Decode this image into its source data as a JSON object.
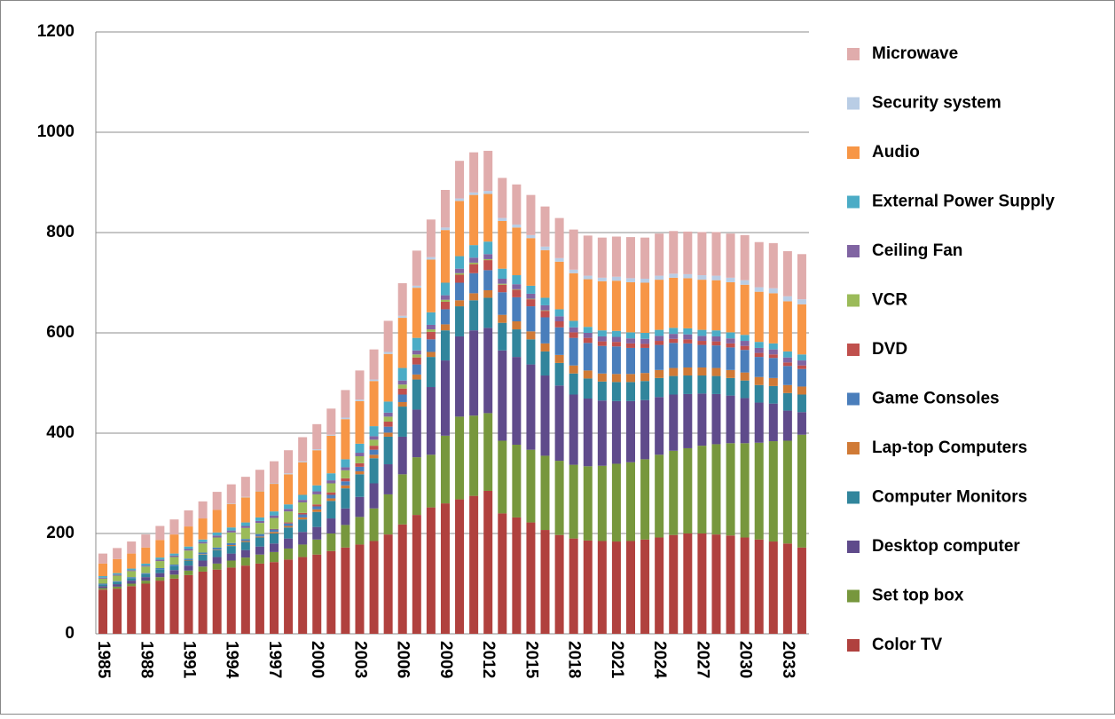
{
  "chart_data": {
    "type": "stacked-bar",
    "categories": [
      "1985",
      null,
      null,
      "1988",
      null,
      null,
      "1991",
      null,
      null,
      "1994",
      null,
      null,
      "1997",
      null,
      null,
      "2000",
      null,
      null,
      "2003",
      null,
      null,
      "2006",
      null,
      null,
      "2009",
      null,
      null,
      "2012",
      null,
      null,
      "2015",
      null,
      null,
      "2018",
      null,
      null,
      "2021",
      null,
      null,
      "2024",
      null,
      null,
      "2027",
      null,
      null,
      "2030",
      null,
      null,
      "2033",
      null
    ],
    "ylim": [
      0,
      1200
    ],
    "yticks": [
      0,
      200,
      400,
      600,
      800,
      1000,
      1200
    ],
    "grid": true,
    "legend": "right",
    "series": [
      {
        "name": "Color TV",
        "color": "#b0413e",
        "values": [
          88,
          90,
          95,
          100,
          106,
          110,
          117,
          124,
          128,
          132,
          136,
          140,
          143,
          148,
          153,
          158,
          165,
          172,
          178,
          185,
          198,
          218,
          237,
          252,
          260,
          268,
          275,
          285,
          240,
          232,
          222,
          207,
          197,
          190,
          186,
          185,
          184,
          185,
          188,
          192,
          197,
          200,
          200,
          198,
          196,
          192,
          188,
          184,
          180,
          172
        ]
      },
      {
        "name": "Set top box",
        "color": "#77973d",
        "values": [
          3,
          4,
          5,
          6,
          7,
          8,
          9,
          10,
          12,
          14,
          16,
          18,
          20,
          22,
          25,
          30,
          35,
          45,
          55,
          65,
          80,
          100,
          115,
          105,
          135,
          165,
          160,
          155,
          145,
          145,
          145,
          148,
          148,
          147,
          148,
          150,
          155,
          157,
          160,
          165,
          168,
          170,
          175,
          180,
          184,
          188,
          193,
          200,
          205,
          225
        ]
      },
      {
        "name": "Desktop computer",
        "color": "#5f4b8b",
        "values": [
          4,
          5,
          6,
          7,
          8,
          9,
          10,
          12,
          13,
          14,
          15,
          16,
          17,
          20,
          25,
          25,
          30,
          33,
          40,
          50,
          60,
          75,
          95,
          135,
          150,
          160,
          170,
          170,
          180,
          175,
          170,
          160,
          150,
          140,
          135,
          130,
          125,
          122,
          118,
          115,
          112,
          108,
          104,
          100,
          95,
          90,
          80,
          75,
          60,
          45
        ]
      },
      {
        "name": "Computer Monitors",
        "color": "#31859c",
        "values": [
          3,
          4,
          5,
          6,
          7,
          8,
          10,
          12,
          14,
          15,
          16,
          18,
          20,
          22,
          25,
          30,
          35,
          40,
          45,
          50,
          55,
          60,
          60,
          60,
          60,
          60,
          60,
          60,
          55,
          55,
          50,
          48,
          45,
          42,
          40,
          38,
          38,
          38,
          38,
          38,
          37,
          37,
          36,
          36,
          35,
          35,
          35,
          35,
          35,
          35
        ]
      },
      {
        "name": "Lap-top Computers",
        "color": "#d07a36",
        "values": [
          0,
          0,
          0,
          0,
          0,
          0,
          1,
          1,
          1,
          2,
          2,
          2,
          3,
          3,
          4,
          5,
          5,
          6,
          6,
          7,
          8,
          9,
          10,
          10,
          12,
          12,
          14,
          15,
          16,
          16,
          16,
          16,
          16,
          16,
          16,
          16,
          16,
          16,
          16,
          16,
          16,
          16,
          16,
          16,
          16,
          16,
          16,
          16,
          16,
          16
        ]
      },
      {
        "name": "Game Consoles",
        "color": "#4a7ebb",
        "values": [
          2,
          2,
          2,
          2,
          3,
          3,
          3,
          3,
          4,
          4,
          4,
          5,
          5,
          5,
          6,
          6,
          7,
          8,
          9,
          10,
          12,
          15,
          20,
          25,
          30,
          35,
          40,
          40,
          45,
          48,
          50,
          52,
          55,
          55,
          55,
          55,
          55,
          52,
          50,
          50,
          50,
          48,
          45,
          45,
          45,
          45,
          40,
          40,
          38,
          35
        ]
      },
      {
        "name": "DVD",
        "color": "#c0504d",
        "values": [
          0,
          0,
          0,
          0,
          0,
          0,
          0,
          0,
          0,
          0,
          0,
          0,
          1,
          2,
          3,
          4,
          5,
          6,
          7,
          8,
          10,
          12,
          14,
          15,
          15,
          16,
          18,
          20,
          15,
          15,
          14,
          13,
          12,
          11,
          10,
          9,
          9,
          9,
          8,
          8,
          8,
          8,
          8,
          8,
          8,
          8,
          8,
          7,
          7,
          7
        ]
      },
      {
        "name": "VCR",
        "color": "#9bbb59",
        "values": [
          10,
          11,
          12,
          13,
          14,
          15,
          16,
          18,
          20,
          21,
          22,
          22,
          22,
          22,
          21,
          20,
          18,
          16,
          14,
          12,
          10,
          8,
          6,
          5,
          4,
          3,
          3,
          2,
          2,
          1,
          1,
          1,
          0,
          0,
          0,
          0,
          0,
          0,
          0,
          0,
          0,
          0,
          0,
          0,
          0,
          0,
          0,
          0,
          0,
          0
        ]
      },
      {
        "name": "Ceiling Fan",
        "color": "#8064a2",
        "values": [
          2,
          2,
          2,
          2,
          3,
          3,
          3,
          3,
          4,
          4,
          4,
          4,
          5,
          5,
          5,
          6,
          6,
          6,
          7,
          7,
          8,
          8,
          8,
          9,
          9,
          9,
          10,
          10,
          10,
          10,
          10,
          10,
          10,
          10,
          10,
          10,
          10,
          10,
          10,
          10,
          10,
          10,
          10,
          10,
          10,
          10,
          10,
          10,
          10,
          10
        ]
      },
      {
        "name": "External Power Supply",
        "color": "#4bacc6",
        "values": [
          3,
          3,
          3,
          4,
          4,
          4,
          5,
          5,
          6,
          6,
          7,
          7,
          8,
          9,
          10,
          12,
          14,
          16,
          18,
          20,
          22,
          25,
          25,
          25,
          25,
          25,
          25,
          25,
          20,
          18,
          16,
          15,
          14,
          13,
          12,
          12,
          12,
          12,
          12,
          12,
          12,
          12,
          12,
          12,
          12,
          12,
          12,
          12,
          12,
          12
        ]
      },
      {
        "name": "Audio",
        "color": "#f79646",
        "values": [
          25,
          28,
          30,
          32,
          35,
          38,
          40,
          42,
          45,
          47,
          50,
          52,
          55,
          60,
          65,
          70,
          75,
          80,
          85,
          90,
          95,
          100,
          100,
          105,
          105,
          110,
          100,
          95,
          95,
          95,
          95,
          95,
          95,
          95,
          95,
          98,
          100,
          100,
          100,
          100,
          100,
          100,
          100,
          100,
          100,
          100,
          100,
          100,
          100,
          100
        ]
      },
      {
        "name": "Security system",
        "color": "#b9cde5",
        "values": [
          0,
          0,
          0,
          0,
          0,
          0,
          0,
          0,
          0,
          1,
          1,
          1,
          1,
          2,
          2,
          2,
          2,
          3,
          3,
          3,
          4,
          4,
          4,
          5,
          5,
          5,
          5,
          6,
          6,
          6,
          6,
          7,
          7,
          7,
          7,
          7,
          8,
          8,
          8,
          8,
          8,
          8,
          9,
          9,
          9,
          9,
          9,
          10,
          10,
          10
        ]
      },
      {
        "name": "Microwave",
        "color": "#e0acac",
        "values": [
          20,
          22,
          24,
          26,
          28,
          30,
          32,
          34,
          36,
          38,
          40,
          42,
          44,
          46,
          48,
          50,
          52,
          55,
          58,
          60,
          62,
          65,
          70,
          75,
          75,
          75,
          80,
          80,
          80,
          80,
          80,
          80,
          80,
          80,
          80,
          80,
          80,
          82,
          82,
          84,
          85,
          85,
          86,
          87,
          88,
          90,
          90,
          90,
          90,
          90
        ]
      }
    ]
  }
}
